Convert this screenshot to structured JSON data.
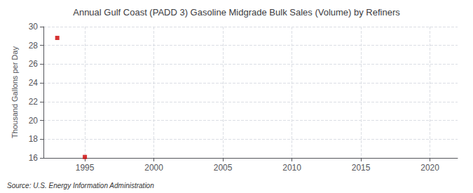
{
  "chart_data": {
    "type": "scatter",
    "title": "Annual Gulf Coast (PADD 3) Gasoline Midgrade Bulk Sales (Volume) by Refiners",
    "ylabel": "Thousand Gallons per Day",
    "annotation": "Source: U.S. Energy Information Administration",
    "x": [
      1993,
      1995
    ],
    "values": [
      28.8,
      16.1
    ],
    "color": "#cc0000",
    "marker": "square",
    "xlim": [
      1992,
      2022
    ],
    "xticks": [
      1995,
      2000,
      2005,
      2010,
      2015,
      2020
    ],
    "ylim": [
      16,
      30
    ],
    "yticks": [
      16,
      18,
      20,
      22,
      24,
      26,
      28,
      30
    ],
    "grid": true
  }
}
